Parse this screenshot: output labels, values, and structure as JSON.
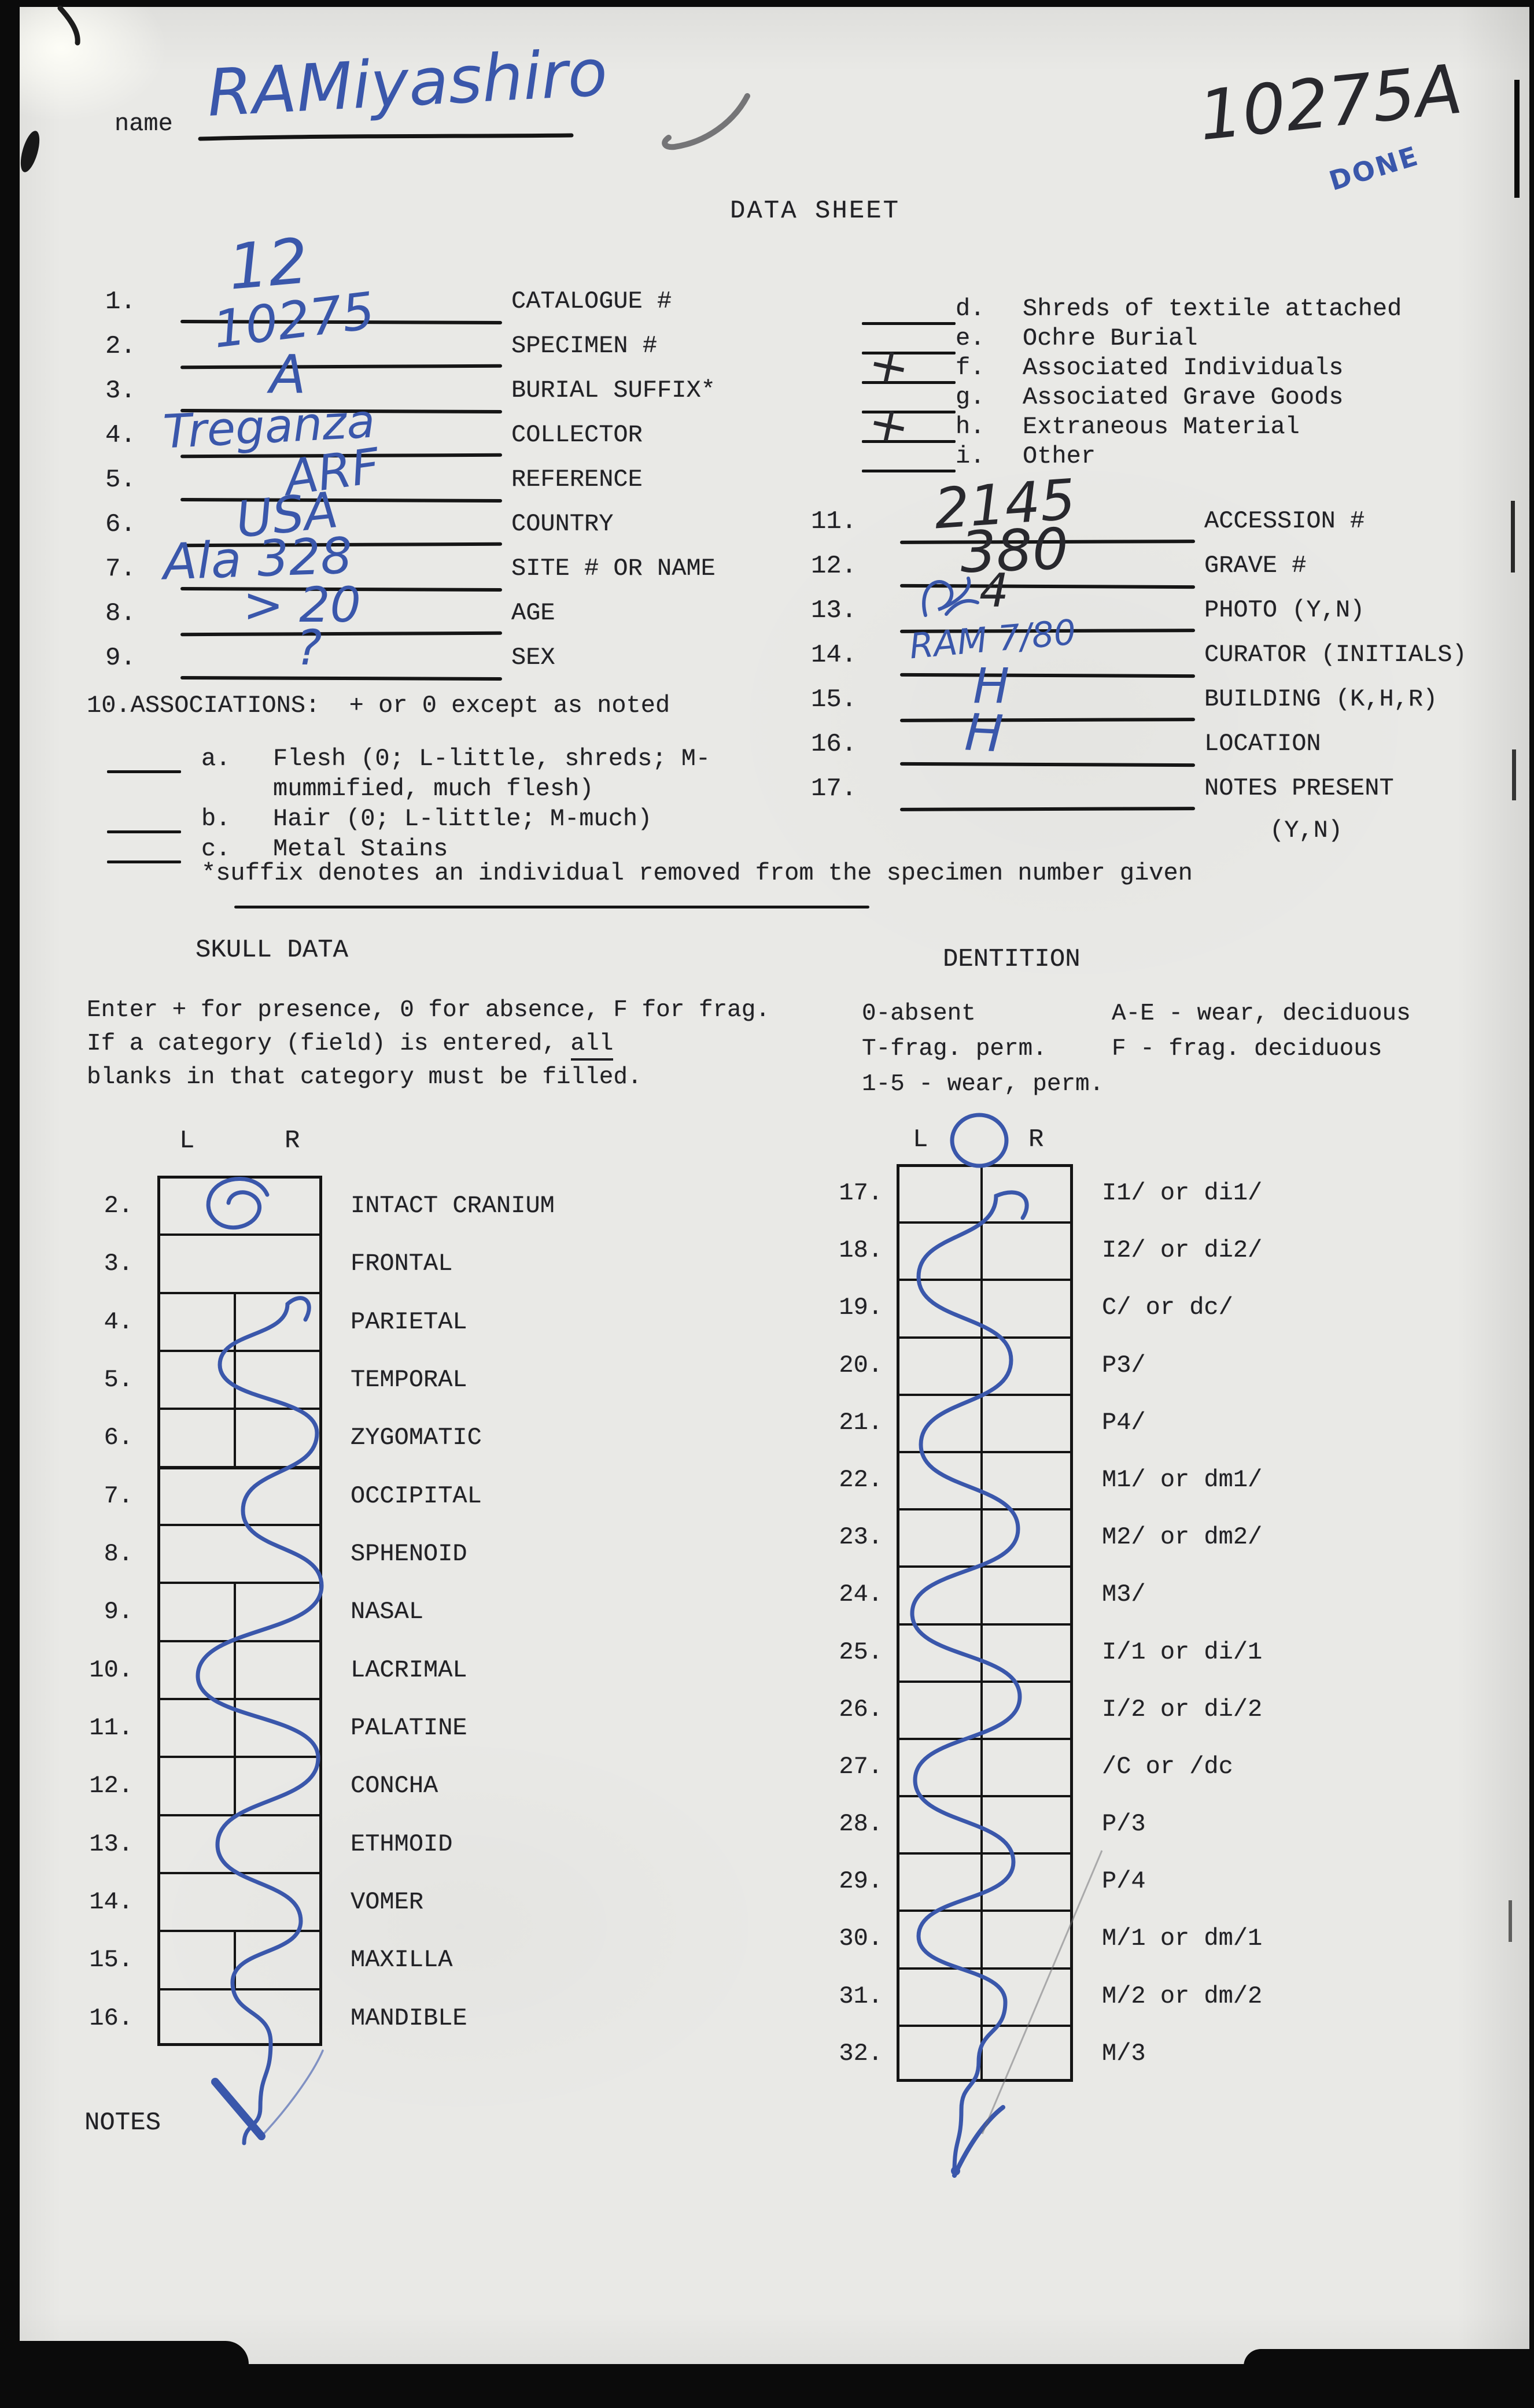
{
  "page": {
    "name_label": "name",
    "name_value": "RAMiyashiro",
    "top_right_id": "10275A",
    "done_note": "DONE",
    "title": "DATA SHEET",
    "notes_label": "NOTES",
    "suffix_note": "*suffix denotes an individual removed from the specimen number given"
  },
  "colors": {
    "paper": "#e9e9e6",
    "typed_ink": "#212125",
    "hand_blue": "#3a57ab",
    "hand_dark": "#28282d",
    "pencil_gray": "#55555a"
  },
  "fields_left": [
    {
      "num": "1.",
      "value": "12",
      "ink": "blue",
      "label": "CATALOGUE #"
    },
    {
      "num": "2.",
      "value": "10275",
      "ink": "blue",
      "label": "SPECIMEN #"
    },
    {
      "num": "3.",
      "value": "A",
      "ink": "blue",
      "label": "BURIAL SUFFIX*"
    },
    {
      "num": "4.",
      "value": "Treganza",
      "ink": "blue",
      "label": "COLLECTOR"
    },
    {
      "num": "5.",
      "value": "ARF",
      "ink": "blue",
      "label": "REFERENCE"
    },
    {
      "num": "6.",
      "value": "USA",
      "ink": "blue",
      "label": "COUNTRY"
    },
    {
      "num": "7.",
      "value": "Ala 328",
      "ink": "blue",
      "label": "SITE # OR NAME"
    },
    {
      "num": "8.",
      "value": "> 20",
      "ink": "blue",
      "label": "AGE"
    },
    {
      "num": "9.",
      "value": "?",
      "ink": "blue",
      "label": "SEX"
    }
  ],
  "associations": {
    "heading": "10.ASSOCIATIONS:  + or 0 except as noted",
    "items": [
      {
        "letter": "a.",
        "text": "Flesh (0; L-little, shreds; M-",
        "text2": "mummified, much flesh)",
        "mark": ""
      },
      {
        "letter": "b.",
        "text": "Hair (0; L-little; M-much)",
        "text2": "",
        "mark": ""
      },
      {
        "letter": "c.",
        "text": "Metal Stains",
        "text2": "",
        "mark": ""
      }
    ]
  },
  "checklist": [
    {
      "letter": "d.",
      "text": "Shreds of textile attached",
      "mark": ""
    },
    {
      "letter": "e.",
      "text": "Ochre Burial",
      "mark": ""
    },
    {
      "letter": "f.",
      "text": "Associated Individuals",
      "mark": "+"
    },
    {
      "letter": "g.",
      "text": "Associated Grave Goods",
      "mark": ""
    },
    {
      "letter": "h.",
      "text": "Extraneous Material",
      "mark": "+"
    },
    {
      "letter": "i.",
      "text": "Other",
      "mark": ""
    }
  ],
  "fields_right": [
    {
      "num": "11.",
      "value": "2145",
      "ink": "dark",
      "label": "ACCESSION #"
    },
    {
      "num": "12.",
      "value": "380",
      "ink": "dark",
      "label": "GRAVE #"
    },
    {
      "num": "13.",
      "value": "4",
      "ink": "dark",
      "label": "PHOTO (Y,N)",
      "scribble": true
    },
    {
      "num": "14.",
      "value": "RAM 7/80",
      "ink": "blue",
      "label": "CURATOR (INITIALS)"
    },
    {
      "num": "15.",
      "value": "H",
      "ink": "blue",
      "label": "BUILDING (K,H,R)"
    },
    {
      "num": "16.",
      "value": "H",
      "ink": "blue",
      "label": "LOCATION"
    },
    {
      "num": "17.",
      "value": "",
      "ink": "",
      "label": "NOTES PRESENT",
      "label2": "(Y,N)"
    }
  ],
  "skull": {
    "heading": "SKULL DATA",
    "col_l": "L",
    "col_r": "R",
    "instr_line1": "Enter + for presence, 0 for absence, F for frag.",
    "instr_line2_pre": "If a category (field) is entered, ",
    "instr_line2_underlined": "all",
    "instr_line3": "blanks in that category must be filled.",
    "rows": [
      {
        "num": "2.",
        "label": "INTACT CRANIUM",
        "split": false
      },
      {
        "num": "3.",
        "label": "FRONTAL",
        "split": false
      },
      {
        "num": "4.",
        "label": "PARIETAL",
        "split": true
      },
      {
        "num": "5.",
        "label": "TEMPORAL",
        "split": true
      },
      {
        "num": "6.",
        "label": "ZYGOMATIC",
        "split": true
      },
      {
        "num": "7.",
        "label": "OCCIPITAL",
        "split": false
      },
      {
        "num": "8.",
        "label": "SPHENOID",
        "split": false
      },
      {
        "num": "9.",
        "label": "NASAL",
        "split": true
      },
      {
        "num": "10.",
        "label": "LACRIMAL",
        "split": true
      },
      {
        "num": "11.",
        "label": "PALATINE",
        "split": true
      },
      {
        "num": "12.",
        "label": "CONCHA",
        "split": true
      },
      {
        "num": "13.",
        "label": "ETHMOID",
        "split": false
      },
      {
        "num": "14.",
        "label": "VOMER",
        "split": false
      },
      {
        "num": "15.",
        "label": "MAXILLA",
        "split": true
      },
      {
        "num": "16.",
        "label": "MANDIBLE",
        "split": false
      }
    ]
  },
  "dentition": {
    "heading": "DENTITION",
    "col_l": "L",
    "col_r": "R",
    "key_col1": [
      "0-absent",
      "T-frag. perm.",
      "1-5 - wear, perm."
    ],
    "key_col2": [
      "A-E - wear, deciduous",
      "F - frag. deciduous"
    ],
    "rows": [
      {
        "num": "17.",
        "label": "I1/ or di1/"
      },
      {
        "num": "18.",
        "label": "I2/ or di2/"
      },
      {
        "num": "19.",
        "label": "C/ or dc/"
      },
      {
        "num": "20.",
        "label": "P3/"
      },
      {
        "num": "21.",
        "label": "P4/"
      },
      {
        "num": "22.",
        "label": "M1/ or dm1/"
      },
      {
        "num": "23.",
        "label": "M2/ or dm2/"
      },
      {
        "num": "24.",
        "label": "M3/"
      },
      {
        "num": "25.",
        "label": "I/1 or di/1"
      },
      {
        "num": "26.",
        "label": "I/2 or di/2"
      },
      {
        "num": "27.",
        "label": "/C or /dc"
      },
      {
        "num": "28.",
        "label": "P/3"
      },
      {
        "num": "29.",
        "label": "P/4"
      },
      {
        "num": "30.",
        "label": "M/1 or dm/1"
      },
      {
        "num": "31.",
        "label": "M/2 or dm/2"
      },
      {
        "num": "32.",
        "label": "M/3"
      }
    ]
  }
}
